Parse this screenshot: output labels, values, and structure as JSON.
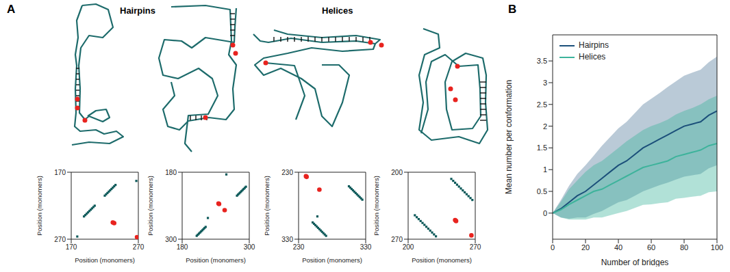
{
  "panel_labels": [
    "A",
    "B"
  ],
  "group_titles": [
    "Hairpins",
    "Helices"
  ],
  "chart_data": [
    {
      "type": "scatter",
      "x_label": "Position (monomers)",
      "y_label": "Position (monomers)",
      "xlim": [
        170,
        270
      ],
      "ylim": [
        270,
        170
      ],
      "xticks": [
        170,
        270
      ],
      "yticks": [
        170,
        270
      ],
      "series": [
        {
          "color": "#0e5a5a",
          "marker": "square",
          "x": [
            189,
            191,
            193,
            195,
            197,
            199,
            201,
            203,
            205,
            220,
            222,
            224,
            226,
            228,
            230,
            232,
            234,
            236,
            179,
            267
          ],
          "y": [
            236,
            234,
            232,
            230,
            228,
            226,
            224,
            222,
            220,
            205,
            203,
            201,
            199,
            197,
            195,
            193,
            191,
            189,
            266,
            183
          ]
        },
        {
          "color": "#e8231f",
          "marker": "circle",
          "x": [
            232,
            234,
            268
          ],
          "y": [
            245,
            246,
            267
          ]
        }
      ]
    },
    {
      "type": "scatter",
      "x_label": "Position (monomers)",
      "y_label": "Position (monomers)",
      "xlim": [
        180,
        300
      ],
      "ylim": [
        300,
        180
      ],
      "xticks": [
        180,
        300
      ],
      "yticks": [
        180,
        300
      ],
      "series": [
        {
          "color": "#0e5a5a",
          "marker": "square",
          "x": [
            206,
            208,
            210,
            212,
            214,
            216,
            218,
            220,
            222,
            278,
            280,
            282,
            284,
            286,
            288,
            290,
            292,
            294,
            259,
            226
          ],
          "y": [
            294,
            292,
            290,
            288,
            286,
            284,
            282,
            280,
            278,
            222,
            220,
            218,
            216,
            214,
            212,
            210,
            208,
            206,
            184,
            262
          ]
        },
        {
          "color": "#e8231f",
          "marker": "circle",
          "x": [
            245,
            246,
            256
          ],
          "y": [
            236,
            237,
            248
          ]
        }
      ]
    },
    {
      "type": "scatter",
      "x_label": "Position (monomers)",
      "y_label": "Position (monomers)",
      "xlim": [
        230,
        330
      ],
      "ylim": [
        330,
        230
      ],
      "xticks": [
        230,
        330
      ],
      "yticks": [
        230,
        330
      ],
      "series": [
        {
          "color": "#0e5a5a",
          "marker": "square",
          "x": [
            251,
            253,
            255,
            257,
            259,
            261,
            263,
            265,
            267,
            269,
            271,
            305,
            307,
            309,
            311,
            313,
            315,
            317,
            319,
            321,
            323,
            325,
            258
          ],
          "y": [
            305,
            307,
            309,
            311,
            313,
            315,
            317,
            319,
            321,
            323,
            325,
            251,
            253,
            255,
            257,
            259,
            261,
            263,
            265,
            267,
            269,
            271,
            296
          ]
        },
        {
          "color": "#e8231f",
          "marker": "circle",
          "x": [
            241,
            242,
            261
          ],
          "y": [
            236,
            237,
            256
          ]
        }
      ]
    },
    {
      "type": "scatter",
      "x_label": "Position (monomers)",
      "y_label": "Position (monomers)",
      "xlim": [
        200,
        270
      ],
      "ylim": [
        270,
        200
      ],
      "xticks": [
        200,
        270
      ],
      "yticks": [
        200,
        270
      ],
      "series": [
        {
          "color": "#0e5a5a",
          "marker": "square",
          "x": [
            207,
            209,
            211,
            213,
            215,
            217,
            219,
            221,
            223,
            225,
            227,
            229,
            245,
            247,
            249,
            251,
            253,
            255,
            257,
            259,
            261,
            263,
            265,
            267
          ],
          "y": [
            245,
            247,
            249,
            251,
            253,
            255,
            257,
            259,
            261,
            263,
            265,
            267,
            207,
            209,
            211,
            213,
            215,
            217,
            219,
            221,
            223,
            225,
            227,
            229
          ]
        },
        {
          "color": "#e8231f",
          "marker": "circle",
          "x": [
            249,
            250,
            266
          ],
          "y": [
            250,
            251,
            266
          ]
        }
      ]
    },
    {
      "type": "line",
      "x_label": "Number of bridges",
      "y_label": "Mean number per conformation",
      "xlim": [
        0,
        100
      ],
      "ylim": [
        -0.6,
        4.1
      ],
      "xticks": [
        0,
        20,
        40,
        60,
        80,
        100
      ],
      "yticks": [
        0,
        0.5,
        1,
        1.5,
        2,
        2.5,
        3,
        3.5
      ],
      "legend": "upper left",
      "x": [
        0,
        5,
        10,
        15,
        20,
        25,
        30,
        35,
        40,
        45,
        50,
        55,
        60,
        65,
        70,
        75,
        80,
        85,
        90,
        95,
        100
      ],
      "series": [
        {
          "name": "Hairpins",
          "color": "#1b4f7a",
          "values": [
            0,
            0.1,
            0.25,
            0.4,
            0.5,
            0.65,
            0.8,
            0.95,
            1.1,
            1.2,
            1.35,
            1.5,
            1.6,
            1.7,
            1.8,
            1.9,
            2.0,
            2.05,
            2.1,
            2.25,
            2.35
          ],
          "error": [
            0,
            0.2,
            0.38,
            0.5,
            0.6,
            0.67,
            0.75,
            0.8,
            0.85,
            0.9,
            0.95,
            1.0,
            1.03,
            1.06,
            1.1,
            1.13,
            1.16,
            1.18,
            1.2,
            1.22,
            1.25
          ]
        },
        {
          "name": "Helices",
          "color": "#3db39b",
          "values": [
            0,
            0.08,
            0.2,
            0.3,
            0.4,
            0.5,
            0.55,
            0.65,
            0.75,
            0.85,
            0.95,
            1.05,
            1.1,
            1.15,
            1.2,
            1.3,
            1.35,
            1.4,
            1.45,
            1.55,
            1.6
          ],
          "error": [
            0,
            0.18,
            0.35,
            0.45,
            0.55,
            0.6,
            0.65,
            0.7,
            0.75,
            0.8,
            0.83,
            0.86,
            0.9,
            0.92,
            0.95,
            0.97,
            1.0,
            1.02,
            1.05,
            1.07,
            1.1
          ]
        }
      ]
    }
  ]
}
